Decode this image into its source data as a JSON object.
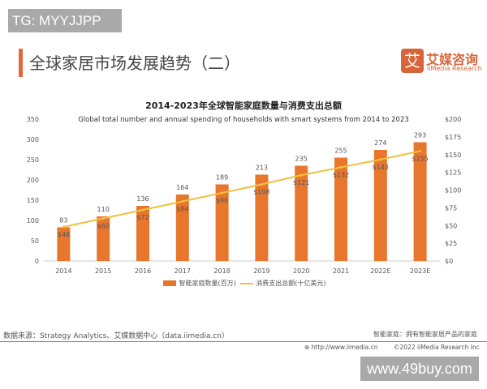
{
  "watermark_top": "TG: MYYJJPP",
  "watermark_bottom": "www.49buy.com",
  "page_title": "全球家居市场发展趋势（二）",
  "logo": {
    "mark": "艾",
    "cn": "艾媒咨询",
    "en": "iiMedia Research"
  },
  "colors": {
    "bar": "#e8762c",
    "line": "#f0c040",
    "accent": "#e0693a"
  },
  "chart_data": {
    "type": "bar",
    "title": "2014-2023年全球智能家庭数量与消费支出总额",
    "subtitle": "Global total number and  annual spending of households with smart systems from 2014 to 2023",
    "categories": [
      "2014",
      "2015",
      "2016",
      "2017",
      "2018",
      "2019",
      "2020",
      "2021",
      "2022E",
      "2023E"
    ],
    "series": [
      {
        "name": "智能家庭数量(百万)",
        "type": "bar",
        "axis": "left",
        "values": [
          83,
          110,
          136,
          164,
          189,
          213,
          235,
          255,
          274,
          293
        ],
        "labels": [
          "83",
          "110",
          "136",
          "164",
          "189",
          "213",
          "235",
          "255",
          "274",
          "293"
        ]
      },
      {
        "name": "消费支出总额(十亿美元)",
        "type": "line",
        "axis": "right",
        "values": [
          48,
          60,
          72,
          84,
          96,
          108,
          121,
          132,
          143,
          155
        ],
        "labels": [
          "$48",
          "$60",
          "$72",
          "$84",
          "$96",
          "$108",
          "$121",
          "$132",
          "$143",
          "$155"
        ]
      }
    ],
    "ylim_left": [
      0,
      350
    ],
    "yticks_left": [
      "0",
      "50",
      "100",
      "150",
      "200",
      "250",
      "300",
      "350"
    ],
    "ylim_right": [
      0,
      200
    ],
    "yticks_right": [
      "$0",
      "$25",
      "$50",
      "$75",
      "$100",
      "$125",
      "$150",
      "$175",
      "$200"
    ],
    "grid": false,
    "legend": "bottom"
  },
  "footer": {
    "source": "数据来源：Strategy Analytics、艾媒数据中心（data.iimedia.cn）",
    "note": "智能家庭：拥有智能家居产品的家庭",
    "url": "http://www.iimedia.cn",
    "copyright": "©2022  iiMedia Research  Inc"
  }
}
